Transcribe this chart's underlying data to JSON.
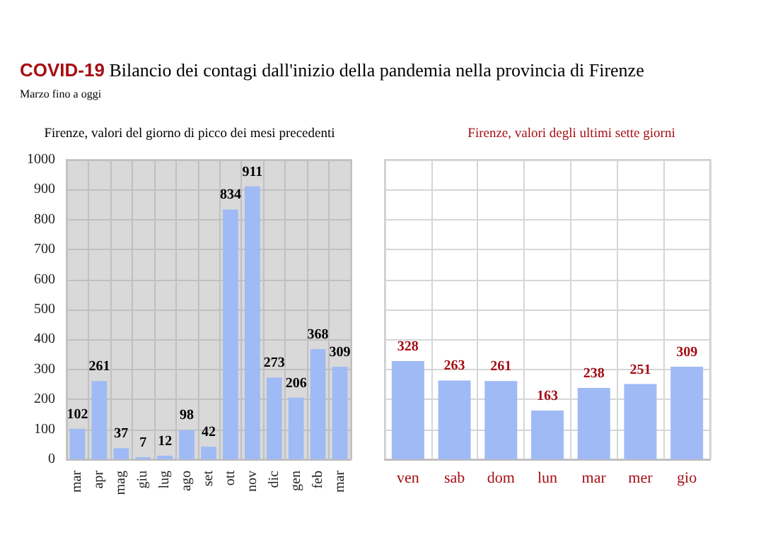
{
  "chart_data": [
    {
      "type": "bar",
      "title": "COVID-19 Bilancio dei contagi dall'inizio della pandemia nella provincia di Firenze",
      "subtitle": "Marzo fino a oggi",
      "annotations": [
        "Firenze, valori del giorno di picco dei mesi precedenti"
      ],
      "categories": [
        "mar",
        "apr",
        "mag",
        "giu",
        "lug",
        "ago",
        "set",
        "ott",
        "nov",
        "dic",
        "gen",
        "feb",
        "mar"
      ],
      "values": [
        102,
        261,
        37,
        7,
        12,
        98,
        42,
        834,
        911,
        273,
        206,
        368,
        309
      ],
      "color": "#a0baf5",
      "ylim": [
        0,
        1000
      ],
      "yticks": [
        0,
        100,
        200,
        300,
        400,
        500,
        600,
        700,
        800,
        900,
        1000
      ],
      "grid": true,
      "data_labels": true
    },
    {
      "type": "bar",
      "annotations": [
        "Firenze, valori degli ultimi sette giorni"
      ],
      "categories": [
        "ven",
        "sab",
        "dom",
        "lun",
        "mar",
        "mer",
        "gio"
      ],
      "values": [
        328,
        263,
        261,
        163,
        238,
        251,
        309
      ],
      "color": "#a0baf5",
      "ylim": [
        0,
        1000
      ],
      "yticks": [
        {
          "value": 0,
          "label": null
        },
        {
          "value": 100,
          "label": null
        },
        {
          "value": 200,
          "label": null
        },
        {
          "value": 300,
          "label": null
        },
        {
          "value": 400,
          "label": null
        },
        {
          "value": 500,
          "label": null
        },
        {
          "value": 600,
          "label": null
        },
        {
          "value": 700,
          "label": null
        },
        {
          "value": 800,
          "label": null
        },
        {
          "value": 900,
          "label": null
        },
        {
          "value": 1000,
          "label": null
        }
      ],
      "grid": true,
      "tick_labels": "x",
      "data_labels": true
    }
  ]
}
